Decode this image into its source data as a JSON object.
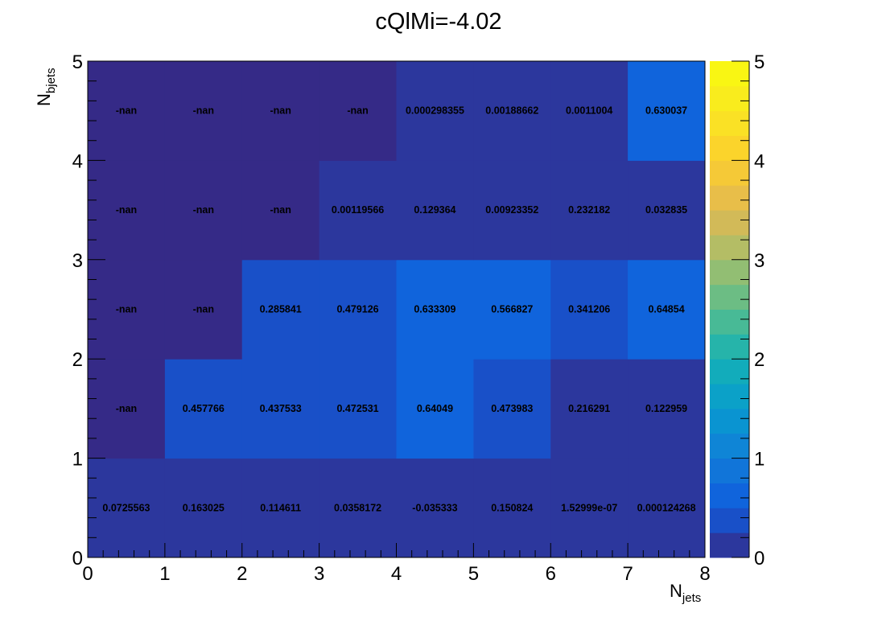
{
  "chart_data": {
    "type": "heatmap",
    "title": "cQlMi=-4.02",
    "xlabel": "N",
    "xlabel_sub": "jets",
    "ylabel": "N",
    "ylabel_sub": "bjets",
    "xlim": [
      0,
      8
    ],
    "ylim": [
      0,
      5
    ],
    "x_ticks": [
      "0",
      "1",
      "2",
      "3",
      "4",
      "5",
      "6",
      "7",
      "8"
    ],
    "y_ticks": [
      "0",
      "1",
      "2",
      "3",
      "4",
      "5"
    ],
    "colorbar": {
      "min": 0,
      "max": 5,
      "ticks": [
        "0",
        "1",
        "2",
        "3",
        "4",
        "5"
      ],
      "colormap": "parula"
    },
    "empty_color": "#352a87",
    "x_bins": [
      "0-1",
      "1-2",
      "2-3",
      "3-4",
      "4-5",
      "5-6",
      "6-7",
      "7-8"
    ],
    "y_bins": [
      "0-1",
      "1-2",
      "2-3",
      "3-4",
      "4-5"
    ],
    "rows": [
      {
        "ybin": "0-1",
        "labels": [
          "0.0725563",
          "0.163025",
          "0.114611",
          "0.0358172",
          "-0.035333",
          "0.150824",
          "1.52999e-07",
          "0.000124268"
        ],
        "values": [
          0.0725563,
          0.163025,
          0.114611,
          0.0358172,
          -0.035333,
          0.150824,
          1.52999e-07,
          0.000124268
        ]
      },
      {
        "ybin": "1-2",
        "labels": [
          "-nan",
          "0.457766",
          "0.437533",
          "0.472531",
          "0.64049",
          "0.473983",
          "0.216291",
          "0.122959"
        ],
        "values": [
          null,
          0.457766,
          0.437533,
          0.472531,
          0.64049,
          0.473983,
          0.216291,
          0.122959
        ]
      },
      {
        "ybin": "2-3",
        "labels": [
          "-nan",
          "-nan",
          "0.285841",
          "0.479126",
          "0.633309",
          "0.566827",
          "0.341206",
          "0.64854"
        ],
        "values": [
          null,
          null,
          0.285841,
          0.479126,
          0.633309,
          0.566827,
          0.341206,
          0.64854
        ]
      },
      {
        "ybin": "3-4",
        "labels": [
          "-nan",
          "-nan",
          "-nan",
          "0.00119566",
          "0.129364",
          "0.00923352",
          "0.232182",
          "0.032835"
        ],
        "values": [
          null,
          null,
          null,
          0.00119566,
          0.129364,
          0.00923352,
          0.232182,
          0.032835
        ]
      },
      {
        "ybin": "4-5",
        "labels": [
          "-nan",
          "-nan",
          "-nan",
          "-nan",
          "0.000298355",
          "0.00188662",
          "0.0011004",
          "0.630037"
        ],
        "values": [
          null,
          null,
          null,
          null,
          0.000298355,
          0.00188662,
          0.0011004,
          0.630037
        ]
      }
    ]
  }
}
